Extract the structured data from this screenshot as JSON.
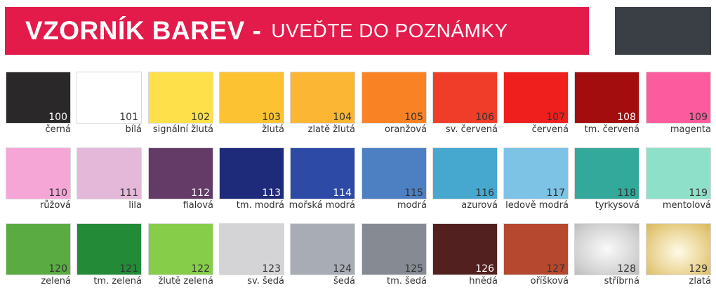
{
  "header": {
    "title_bold": "VZORNÍK BAREV -",
    "title_rest": "UVEĎTE DO POZNÁMKY",
    "color": "#e31b4b",
    "side_box_color": "#3a3f46"
  },
  "swatches": [
    {
      "code": "100",
      "name": "černá",
      "color": "#2a2828",
      "num_color": "#ffffff"
    },
    {
      "code": "101",
      "name": "bílá",
      "color": "#ffffff",
      "num_color": "#333333"
    },
    {
      "code": "102",
      "name": "signální žlutá",
      "color": "#fde04a",
      "num_color": "#333333"
    },
    {
      "code": "103",
      "name": "žlutá",
      "color": "#fdc232",
      "num_color": "#333333"
    },
    {
      "code": "104",
      "name": "zlatě žlutá",
      "color": "#fbb634",
      "num_color": "#333333"
    },
    {
      "code": "105",
      "name": "oranžová",
      "color": "#f98224",
      "num_color": "#333333"
    },
    {
      "code": "106",
      "name": "sv. červená",
      "color": "#ef3d2a",
      "num_color": "#333333"
    },
    {
      "code": "107",
      "name": "červená",
      "color": "#ee1f1d",
      "num_color": "#333333"
    },
    {
      "code": "108",
      "name": "tm. červená",
      "color": "#a40d0e",
      "num_color": "#ffffff"
    },
    {
      "code": "109",
      "name": "magenta",
      "color": "#fc5b9d",
      "num_color": "#333333"
    },
    {
      "code": "110",
      "name": "růžová",
      "color": "#f6a6d6",
      "num_color": "#333333"
    },
    {
      "code": "111",
      "name": "lila",
      "color": "#e4b8d8",
      "num_color": "#333333"
    },
    {
      "code": "112",
      "name": "fialová",
      "color": "#643a66",
      "num_color": "#ffffff"
    },
    {
      "code": "113",
      "name": "tm. modrá",
      "color": "#1e2a7a",
      "num_color": "#ffffff"
    },
    {
      "code": "114",
      "name": "mořská modrá",
      "color": "#2d4aa6",
      "num_color": "#ffffff"
    },
    {
      "code": "115",
      "name": "modrá",
      "color": "#4d7fc3",
      "num_color": "#333333"
    },
    {
      "code": "116",
      "name": "azurová",
      "color": "#46a8cf",
      "num_color": "#333333"
    },
    {
      "code": "117",
      "name": "ledově modrá",
      "color": "#7dc3e6",
      "num_color": "#333333"
    },
    {
      "code": "118",
      "name": "tyrkysová",
      "color": "#33a99c",
      "num_color": "#333333"
    },
    {
      "code": "119",
      "name": "mentolová",
      "color": "#8fe0c8",
      "num_color": "#333333"
    },
    {
      "code": "120",
      "name": "zelená",
      "color": "#5aac42",
      "num_color": "#333333"
    },
    {
      "code": "121",
      "name": "tm. zelená",
      "color": "#238a38",
      "num_color": "#333333"
    },
    {
      "code": "122",
      "name": "žlutě zelená",
      "color": "#86ce4a",
      "num_color": "#333333"
    },
    {
      "code": "123",
      "name": "sv. šedá",
      "color": "#d4d3d6",
      "num_color": "#333333"
    },
    {
      "code": "124",
      "name": "šedá",
      "color": "#a8adb5",
      "num_color": "#333333"
    },
    {
      "code": "125",
      "name": "tm. šedá",
      "color": "#858a93",
      "num_color": "#333333"
    },
    {
      "code": "126",
      "name": "hnědá",
      "color": "#51201f",
      "num_color": "#ffffff"
    },
    {
      "code": "127",
      "name": "oříšková",
      "color": "#b5482e",
      "num_color": "#333333"
    },
    {
      "code": "128",
      "name": "stříbrná",
      "color": "radial-gradient(ellipse at 50% 50%, #fafafa 0%, #d2d2d2 70%, #bcbcbc 100%)",
      "num_color": "#333333"
    },
    {
      "code": "129",
      "name": "zlatá",
      "color": "radial-gradient(ellipse at 50% 55%, #fffbe8 0%, #ecd79a 55%, #d8b85a 100%)",
      "num_color": "#333333"
    }
  ]
}
